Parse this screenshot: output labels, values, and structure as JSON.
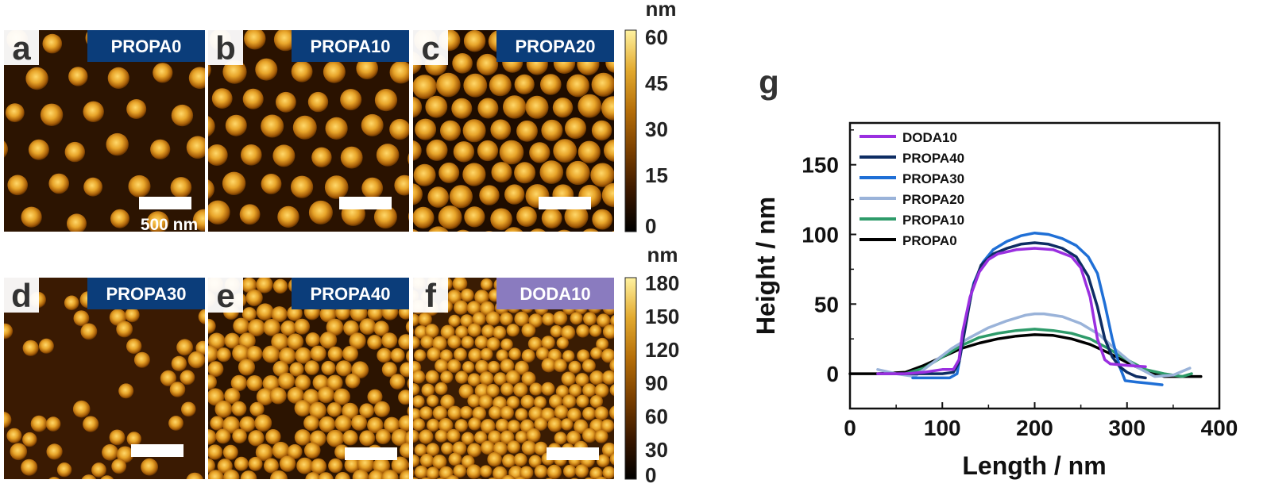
{
  "panels": [
    {
      "letter": "a",
      "label": "PROPA0",
      "label_color": "#0b3d7a",
      "scalebar_text": "500 nm",
      "density": "sparse-ordered",
      "max_height": 30
    },
    {
      "letter": "b",
      "label": "PROPA10",
      "label_color": "#0b3d7a",
      "scalebar_text": "",
      "density": "ordered",
      "max_height": 40
    },
    {
      "letter": "c",
      "label": "PROPA20",
      "label_color": "#0b3d7a",
      "scalebar_text": "",
      "density": "dense-ordered",
      "max_height": 50
    },
    {
      "letter": "d",
      "label": "PROPA30",
      "label_color": "#0b3d7a",
      "scalebar_text": "",
      "density": "sparse-clusters",
      "max_height": 120
    },
    {
      "letter": "e",
      "label": "PROPA40",
      "label_color": "#0b3d7a",
      "scalebar_text": "",
      "density": "packed",
      "max_height": 110
    },
    {
      "letter": "f",
      "label": "DODA10",
      "label_color": "#8a7bbf",
      "scalebar_text": "",
      "density": "packed-small",
      "max_height": 100
    }
  ],
  "colorbars": [
    {
      "unit": "nm",
      "ticks": [
        "60",
        "45",
        "30",
        "15",
        "0"
      ]
    },
    {
      "unit": "nm",
      "ticks": [
        "180",
        "150",
        "120",
        "90",
        "60",
        "30",
        "0"
      ]
    }
  ],
  "colormap": [
    "#000000",
    "#3a1800",
    "#7a3f00",
    "#b56e08",
    "#e2a92e",
    "#fff2a0"
  ],
  "chart_data": {
    "type": "line",
    "panel_letter": "g",
    "title": "",
    "xlabel": "Length / nm",
    "ylabel": "Height / nm",
    "xlim": [
      0,
      400
    ],
    "ylim": [
      -25,
      180
    ],
    "xticks": [
      0,
      100,
      200,
      300,
      400
    ],
    "yticks": [
      0,
      50,
      100,
      150
    ],
    "legend_position": "top-left",
    "series": [
      {
        "name": "DODA10",
        "color": "#9a2fe0",
        "x": [
          30,
          60,
          80,
          100,
          112,
          118,
          122,
          130,
          140,
          150,
          160,
          180,
          200,
          220,
          240,
          250,
          260,
          268,
          276,
          282,
          300,
          320
        ],
        "y": [
          0,
          0,
          1,
          3,
          3,
          10,
          30,
          55,
          73,
          82,
          86,
          89,
          90,
          89,
          84,
          76,
          55,
          25,
          10,
          7,
          6,
          5
        ]
      },
      {
        "name": "PROPA40",
        "color": "#0e2d63",
        "x": [
          30,
          60,
          80,
          100,
          112,
          118,
          124,
          132,
          142,
          155,
          170,
          185,
          200,
          215,
          230,
          245,
          258,
          268,
          276,
          284,
          292,
          300,
          310,
          320
        ],
        "y": [
          0,
          0,
          0,
          0,
          1,
          8,
          30,
          60,
          78,
          86,
          90,
          93,
          94,
          93,
          90,
          84,
          70,
          48,
          25,
          12,
          5,
          1,
          -2,
          -3
        ]
      },
      {
        "name": "PROPA30",
        "color": "#1f6fd6",
        "x": [
          68,
          90,
          108,
          116,
          120,
          126,
          134,
          144,
          155,
          170,
          185,
          200,
          215,
          230,
          245,
          258,
          268,
          276,
          284,
          292,
          298,
          310,
          325,
          338
        ],
        "y": [
          -3,
          -3,
          -3,
          0,
          15,
          40,
          65,
          80,
          89,
          95,
          99,
          101,
          100,
          97,
          92,
          84,
          72,
          50,
          25,
          5,
          -5,
          -6,
          -7,
          -8
        ]
      },
      {
        "name": "PROPA20",
        "color": "#9ab3d9",
        "x": [
          30,
          50,
          70,
          90,
          110,
          130,
          150,
          170,
          190,
          200,
          210,
          230,
          250,
          270,
          290,
          310,
          330,
          350,
          368
        ],
        "y": [
          3,
          0,
          -2,
          8,
          18,
          26,
          33,
          38,
          42,
          43,
          43,
          41,
          36,
          28,
          16,
          5,
          -2,
          -1,
          4
        ]
      },
      {
        "name": "PROPA10",
        "color": "#2e9b6a",
        "x": [
          60,
          80,
          100,
          120,
          140,
          160,
          180,
          200,
          220,
          240,
          260,
          280,
          300,
          320,
          340,
          360,
          370
        ],
        "y": [
          0,
          4,
          12,
          20,
          26,
          29,
          31,
          32,
          31,
          29,
          25,
          18,
          10,
          3,
          0,
          -2,
          0
        ]
      },
      {
        "name": "PROPA0",
        "color": "#000000",
        "x": [
          0,
          30,
          60,
          80,
          100,
          120,
          140,
          160,
          180,
          200,
          220,
          240,
          260,
          280,
          300,
          320,
          340,
          360,
          380
        ],
        "y": [
          0,
          0,
          1,
          6,
          12,
          18,
          22,
          25,
          27,
          28,
          27.5,
          25,
          21,
          15,
          8,
          2,
          -2,
          -2,
          -2
        ]
      }
    ]
  }
}
